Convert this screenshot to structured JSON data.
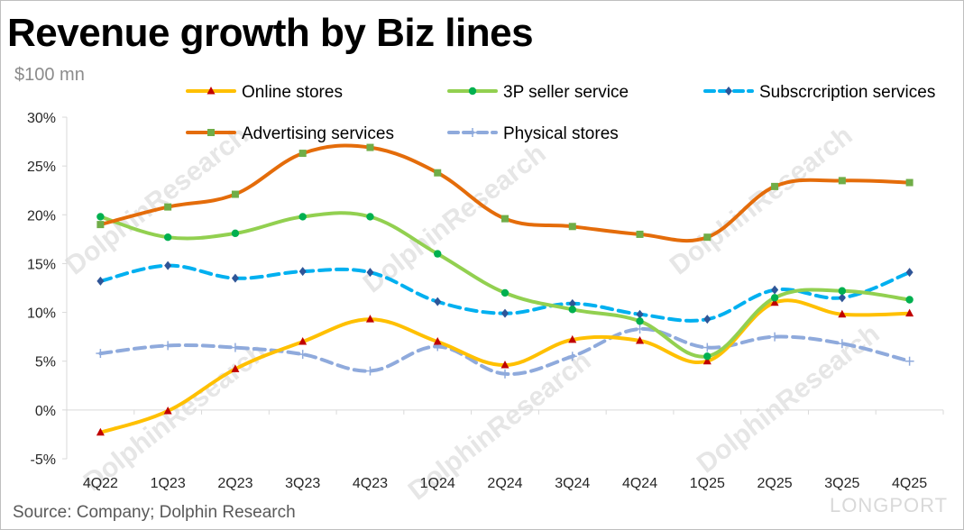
{
  "header": {
    "title": "Revenue growth by Biz lines",
    "unit_label": "$100 mn"
  },
  "footer": {
    "source": "Source: Company; Dolphin Research"
  },
  "watermark": {
    "text": "DolphinResearch",
    "brand": "LONGPORT"
  },
  "chart_data": {
    "type": "line",
    "categories": [
      "4Q22",
      "1Q23",
      "2Q23",
      "3Q23",
      "4Q23",
      "1Q24",
      "2Q24",
      "3Q24",
      "4Q24",
      "1Q25",
      "2Q25",
      "3Q25",
      "4Q25"
    ],
    "ylim": [
      -5,
      30
    ],
    "yticks": [
      -5,
      0,
      5,
      10,
      15,
      20,
      25,
      30
    ],
    "ytick_labels": [
      "-5%",
      "0%",
      "5%",
      "10%",
      "15%",
      "20%",
      "25%",
      "30%"
    ],
    "grid": false,
    "legend_position": "top",
    "series": [
      {
        "name": "Online stores",
        "color": "#ffc000",
        "marker": "triangle",
        "marker_color": "#c00000",
        "dash": false,
        "values": [
          -2.3,
          -0.1,
          4.2,
          7.0,
          9.3,
          7.0,
          4.6,
          7.2,
          7.1,
          5.0,
          11.0,
          9.8,
          9.9
        ]
      },
      {
        "name": "3P seller service",
        "color": "#92d050",
        "marker": "circle",
        "marker_color": "#00b050",
        "dash": false,
        "values": [
          19.8,
          17.7,
          18.1,
          19.8,
          19.8,
          16.0,
          12.0,
          10.3,
          9.1,
          5.5,
          11.5,
          12.2,
          11.3
        ]
      },
      {
        "name": "Subscrcription services",
        "color": "#00b0f0",
        "marker": "diamond",
        "marker_color": "#2f5597",
        "dash": true,
        "values": [
          13.2,
          14.8,
          13.5,
          14.2,
          14.1,
          11.1,
          9.9,
          10.9,
          9.8,
          9.3,
          12.3,
          11.5,
          14.1
        ]
      },
      {
        "name": "Advertising services",
        "color": "#e46c0a",
        "marker": "square",
        "marker_color": "#70ad47",
        "dash": false,
        "values": [
          19.0,
          20.8,
          22.1,
          26.3,
          26.9,
          24.3,
          19.6,
          18.8,
          18.0,
          17.7,
          22.9,
          23.5,
          23.3
        ]
      },
      {
        "name": "Physical stores",
        "color": "#8faadc",
        "marker": "plus",
        "marker_color": "#8faadc",
        "dash": true,
        "values": [
          5.8,
          6.6,
          6.4,
          5.7,
          4.0,
          6.5,
          3.7,
          5.5,
          8.3,
          6.4,
          7.5,
          6.8,
          5.0
        ]
      }
    ]
  }
}
